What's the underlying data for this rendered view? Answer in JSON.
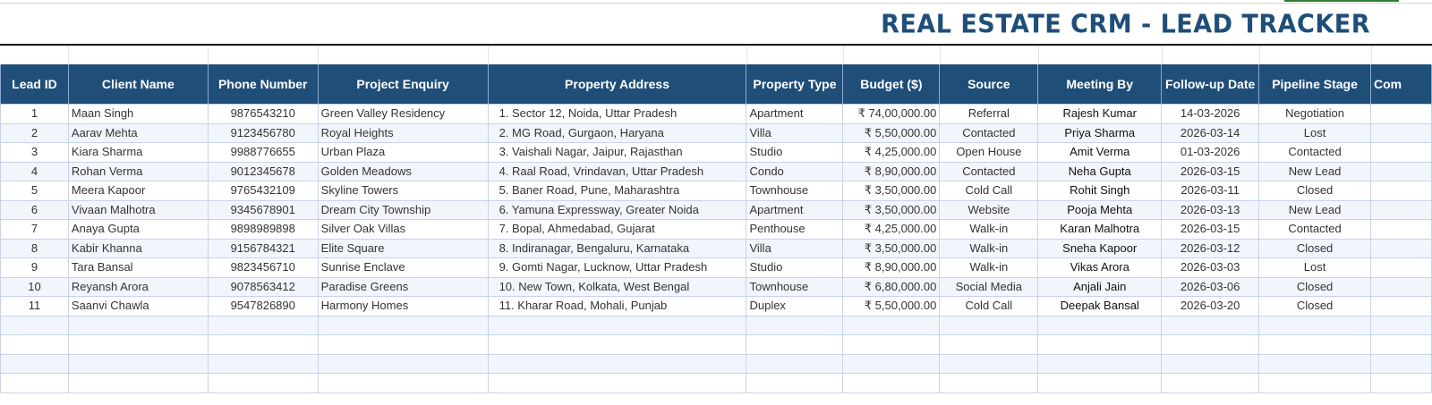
{
  "sheet": {
    "title": "REAL ESTATE CRM - LEAD TRACKER",
    "colors": {
      "header_bg": "#1f4e79",
      "header_text": "#ffffff",
      "title_text": "#1f4e79",
      "band_row": "#f2f6fc",
      "grid_line": "#c7d3ea"
    }
  },
  "table": {
    "columns": [
      "Lead ID",
      "Client Name",
      "Phone Number",
      "Project Enquiry",
      "Property Address",
      "Property Type",
      "Budget ($)",
      "Source",
      "Meeting By",
      "Follow-up Date",
      "Pipeline Stage",
      "Com"
    ],
    "rows": [
      {
        "id": "1",
        "client": "Maan Singh",
        "phone": "9876543210",
        "project": "Green Valley Residency",
        "address": "1. Sector 12, Noida, Uttar Pradesh",
        "type": "Apartment",
        "budget": "₹ 74,00,000.00",
        "source": "Referral",
        "meeting_by": "Rajesh Kumar",
        "follow_up": "14-03-2026",
        "stage": "Negotiation",
        "comments": ""
      },
      {
        "id": "2",
        "client": "Aarav Mehta",
        "phone": "9123456780",
        "project": "Royal Heights",
        "address": "2. MG Road, Gurgaon, Haryana",
        "type": "Villa",
        "budget": "₹ 5,50,000.00",
        "source": "Contacted",
        "meeting_by": "Priya Sharma",
        "follow_up": "2026-03-14",
        "stage": "Lost",
        "comments": ""
      },
      {
        "id": "3",
        "client": "Kiara Sharma",
        "phone": "9988776655",
        "project": "Urban Plaza",
        "address": "3. Vaishali Nagar, Jaipur, Rajasthan",
        "type": "Studio",
        "budget": "₹ 4,25,000.00",
        "source": "Open House",
        "meeting_by": "Amit Verma",
        "follow_up": "01-03-2026",
        "stage": "Contacted",
        "comments": ""
      },
      {
        "id": "4",
        "client": "Rohan Verma",
        "phone": "9012345678",
        "project": "Golden Meadows",
        "address": "4. Raal Road, Vrindavan, Uttar Pradesh",
        "type": "Condo",
        "budget": "₹ 8,90,000.00",
        "source": "Contacted",
        "meeting_by": "Neha Gupta",
        "follow_up": "2026-03-15",
        "stage": "New Lead",
        "comments": ""
      },
      {
        "id": "5",
        "client": "Meera Kapoor",
        "phone": "9765432109",
        "project": "Skyline Towers",
        "address": "5. Baner Road, Pune, Maharashtra",
        "type": "Townhouse",
        "budget": "₹ 3,50,000.00",
        "source": "Cold Call",
        "meeting_by": "Rohit Singh",
        "follow_up": "2026-03-11",
        "stage": "Closed",
        "comments": ""
      },
      {
        "id": "6",
        "client": "Vivaan Malhotra",
        "phone": "9345678901",
        "project": "Dream City Township",
        "address": "6. Yamuna Expressway, Greater Noida",
        "type": "Apartment",
        "budget": "₹ 3,50,000.00",
        "source": "Website",
        "meeting_by": "Pooja Mehta",
        "follow_up": "2026-03-13",
        "stage": "New Lead",
        "comments": ""
      },
      {
        "id": "7",
        "client": "Anaya Gupta",
        "phone": "9898989898",
        "project": "Silver Oak Villas",
        "address": "7. Bopal, Ahmedabad, Gujarat",
        "type": "Penthouse",
        "budget": "₹ 4,25,000.00",
        "source": "Walk-in",
        "meeting_by": "Karan Malhotra",
        "follow_up": "2026-03-15",
        "stage": "Contacted",
        "comments": ""
      },
      {
        "id": "8",
        "client": "Kabir Khanna",
        "phone": "9156784321",
        "project": "Elite Square",
        "address": "8. Indiranagar, Bengaluru, Karnataka",
        "type": "Villa",
        "budget": "₹ 3,50,000.00",
        "source": "Walk-in",
        "meeting_by": "Sneha Kapoor",
        "follow_up": "2026-03-12",
        "stage": "Closed",
        "comments": ""
      },
      {
        "id": "9",
        "client": "Tara Bansal",
        "phone": "9823456710",
        "project": "Sunrise Enclave",
        "address": "9. Gomti Nagar, Lucknow, Uttar Pradesh",
        "type": "Studio",
        "budget": "₹ 8,90,000.00",
        "source": "Walk-in",
        "meeting_by": "Vikas Arora",
        "follow_up": "2026-03-03",
        "stage": "Lost",
        "comments": ""
      },
      {
        "id": "10",
        "client": "Reyansh Arora",
        "phone": "9078563412",
        "project": "Paradise Greens",
        "address": "10. New Town, Kolkata, West Bengal",
        "type": "Townhouse",
        "budget": "₹ 6,80,000.00",
        "source": "Social Media",
        "meeting_by": "Anjali Jain",
        "follow_up": "2026-03-06",
        "stage": "Closed",
        "comments": ""
      },
      {
        "id": "11",
        "client": "Saanvi Chawla",
        "phone": "9547826890",
        "project": "Harmony Homes",
        "address": "11. Kharar Road, Mohali, Punjab",
        "type": "Duplex",
        "budget": "₹ 5,50,000.00",
        "source": "Cold Call",
        "meeting_by": "Deepak Bansal",
        "follow_up": "2026-03-20",
        "stage": "Closed",
        "comments": ""
      }
    ],
    "empty_rows": 4
  }
}
